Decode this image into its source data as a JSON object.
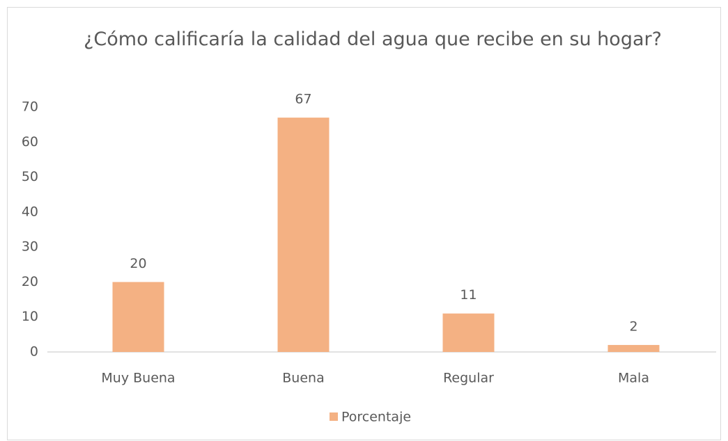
{
  "chart_data": {
    "type": "bar",
    "title": "¿Cómo calificaría la calidad del agua que recibe en su hogar?",
    "categories": [
      "Muy Buena",
      "Buena",
      "Regular",
      "Mala"
    ],
    "series": [
      {
        "name": "Porcentaje",
        "color": "#f4b183",
        "values": [
          20,
          67,
          11,
          2
        ]
      }
    ],
    "ylim": [
      0,
      70
    ],
    "yticks": [
      0,
      10,
      20,
      30,
      40,
      50,
      60,
      70
    ],
    "grid": false,
    "legend": "bottom"
  }
}
